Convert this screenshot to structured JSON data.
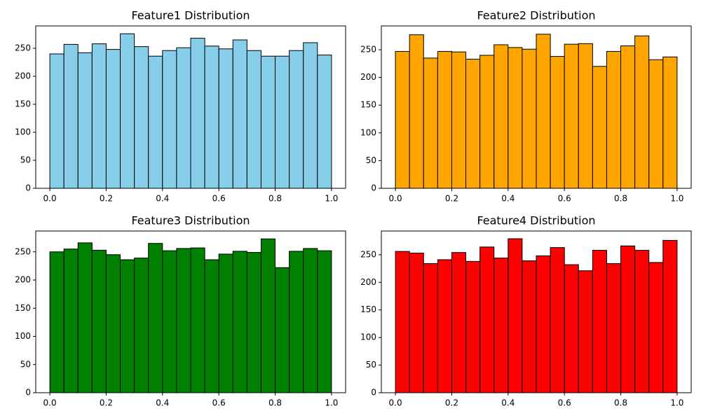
{
  "chart_data": [
    {
      "type": "histogram",
      "title": "Feature1 Distribution",
      "color": "#87ceeb",
      "edgecolor": "#000000",
      "bins": [
        0,
        0.05,
        0.1,
        0.15,
        0.2,
        0.25,
        0.3,
        0.35,
        0.4,
        0.45,
        0.5,
        0.55,
        0.6,
        0.65,
        0.7,
        0.75,
        0.8,
        0.85,
        0.9,
        0.95,
        1
      ],
      "values": [
        240,
        257,
        242,
        258,
        248,
        276,
        253,
        236,
        246,
        251,
        268,
        254,
        249,
        265,
        246,
        236,
        236,
        246,
        260,
        238
      ],
      "xlim": [
        -0.05,
        1.05
      ],
      "xticks": [
        {
          "value": 0,
          "label": "0.0"
        },
        0.2,
        0.4,
        0.6,
        0.8,
        {
          "value": 1,
          "label": "1.0"
        }
      ],
      "ylim": [
        0,
        290
      ],
      "yticks": [
        0,
        50,
        100,
        150,
        200,
        250
      ]
    },
    {
      "type": "histogram",
      "title": "Feature2 Distribution",
      "color": "#ffa500",
      "edgecolor": "#000000",
      "bins": [
        0,
        0.05,
        0.1,
        0.15,
        0.2,
        0.25,
        0.3,
        0.35,
        0.4,
        0.45,
        0.5,
        0.55,
        0.6,
        0.65,
        0.7,
        0.75,
        0.8,
        0.85,
        0.9,
        0.95,
        1
      ],
      "values": [
        247,
        277,
        235,
        247,
        246,
        233,
        240,
        259,
        254,
        251,
        278,
        238,
        260,
        261,
        220,
        247,
        257,
        275,
        232,
        237
      ],
      "xlim": [
        -0.05,
        1.05
      ],
      "xticks": [
        {
          "value": 0,
          "label": "0.0"
        },
        0.2,
        0.4,
        0.6,
        0.8,
        {
          "value": 1,
          "label": "1.0"
        }
      ],
      "ylim": [
        0,
        293
      ],
      "yticks": [
        0,
        50,
        100,
        150,
        200,
        250
      ]
    },
    {
      "type": "histogram",
      "title": "Feature3 Distribution",
      "color": "#008000",
      "edgecolor": "#000000",
      "bins": [
        0,
        0.05,
        0.1,
        0.15,
        0.2,
        0.25,
        0.3,
        0.35,
        0.4,
        0.45,
        0.5,
        0.55,
        0.6,
        0.65,
        0.7,
        0.75,
        0.8,
        0.85,
        0.9,
        0.95,
        1
      ],
      "values": [
        250,
        255,
        266,
        253,
        245,
        236,
        239,
        265,
        252,
        256,
        257,
        236,
        246,
        251,
        249,
        273,
        222,
        251,
        256,
        252
      ],
      "xlim": [
        -0.05,
        1.05
      ],
      "xticks": [
        {
          "value": 0,
          "label": "0.0"
        },
        0.2,
        0.4,
        0.6,
        0.8,
        {
          "value": 1,
          "label": "1.0"
        }
      ],
      "ylim": [
        0,
        287
      ],
      "yticks": [
        0,
        50,
        100,
        150,
        200,
        250
      ]
    },
    {
      "type": "histogram",
      "title": "Feature4 Distribution",
      "color": "#ff0000",
      "edgecolor": "#000000",
      "bins": [
        0,
        0.05,
        0.1,
        0.15,
        0.2,
        0.25,
        0.3,
        0.35,
        0.4,
        0.45,
        0.5,
        0.55,
        0.6,
        0.65,
        0.7,
        0.75,
        0.8,
        0.85,
        0.9,
        0.95,
        1
      ],
      "values": [
        256,
        253,
        234,
        241,
        254,
        238,
        264,
        244,
        279,
        239,
        248,
        263,
        232,
        221,
        258,
        234,
        266,
        258,
        236,
        276
      ],
      "xlim": [
        -0.05,
        1.05
      ],
      "xticks": [
        {
          "value": 0,
          "label": "0.0"
        },
        0.2,
        0.4,
        0.6,
        0.8,
        {
          "value": 1,
          "label": "1.0"
        }
      ],
      "ylim": [
        0,
        293
      ],
      "yticks": [
        0,
        50,
        100,
        150,
        200,
        250
      ]
    }
  ]
}
